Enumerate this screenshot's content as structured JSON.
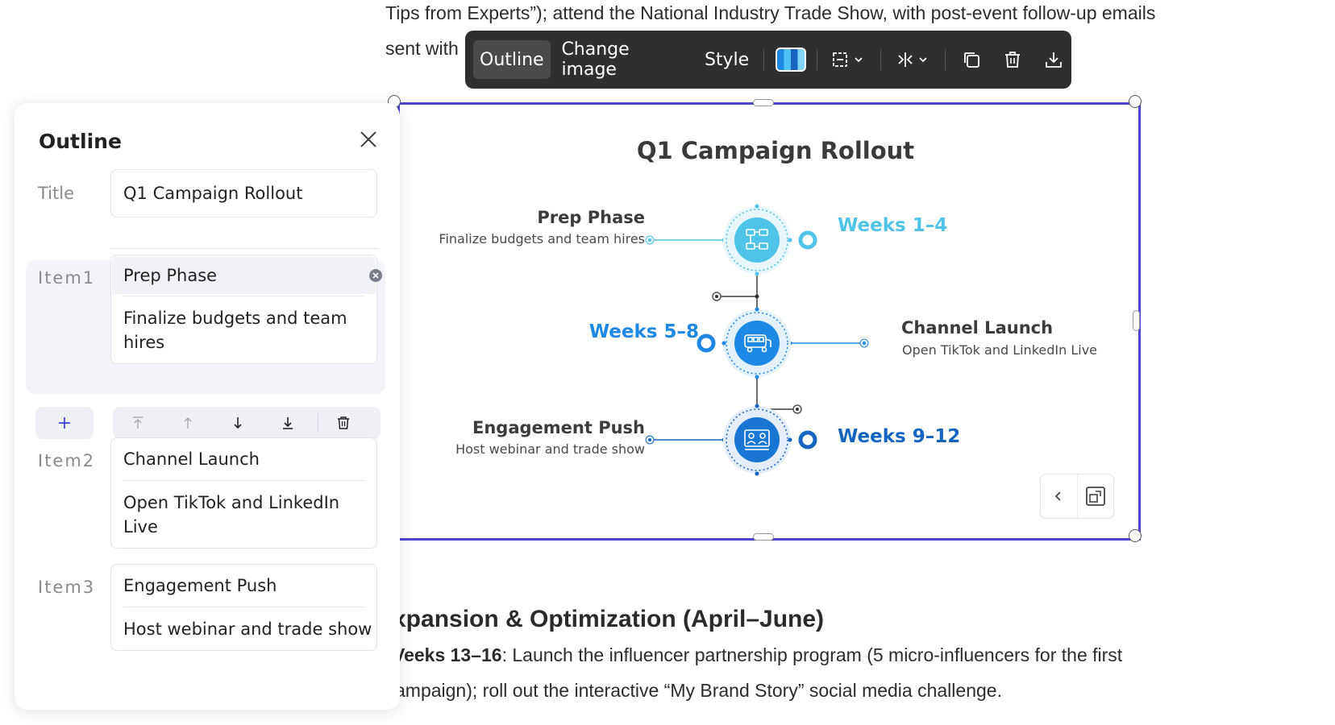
{
  "document": {
    "line1": "Tips from Experts”); attend the National Industry Trade Show, with post-event follow-up emails",
    "line2": "sent with",
    "heading": "xpansion & Optimization (April–June)",
    "para_bold": "Veeks 13–16",
    "para_rest": ": Launch the influencer partnership program (5 micro-influencers for the first",
    "para_line2": "ampaign); roll out the interactive “My Brand Story” social media challenge."
  },
  "toolbar": {
    "outline_label": "Outline",
    "change_image_label": "Change image",
    "style_label": "Style",
    "icons": [
      "color-swatch",
      "layout-dropdown",
      "align-dropdown",
      "copy-icon",
      "trash-icon",
      "download-icon"
    ]
  },
  "infographic": {
    "title": "Q1 Campaign Rollout",
    "items": [
      {
        "heading": "Prep Phase",
        "sub": "Finalize budgets and team hires",
        "weeks": "Weeks 1–4",
        "icon": "flowchart-icon"
      },
      {
        "heading": "Channel Launch",
        "sub": "Open TikTok and LinkedIn Live",
        "weeks": "Weeks 5–8",
        "icon": "bus-icon"
      },
      {
        "heading": "Engagement Push",
        "sub": "Host webinar and trade show",
        "weeks": "Weeks 9–12",
        "icon": "group-icon"
      }
    ],
    "colors": {
      "light": "#4fc3e8",
      "primary": "#1e88e5",
      "dark": "#1565c0"
    }
  },
  "outline_panel": {
    "title": "Outline",
    "title_label": "Title",
    "title_value": "Q1 Campaign Rollout",
    "items": [
      {
        "label": "Item1",
        "title": "Prep Phase",
        "desc_line1": "Finalize budgets and team",
        "desc_line2": "hires"
      },
      {
        "label": "Item2",
        "title": "Channel Launch",
        "desc_line1": "Open TikTok and LinkedIn",
        "desc_line2": "Live"
      },
      {
        "label": "Item3",
        "title": "Engagement Push",
        "desc_line1": "Host webinar and trade show"
      }
    ],
    "add_symbol": "+"
  }
}
